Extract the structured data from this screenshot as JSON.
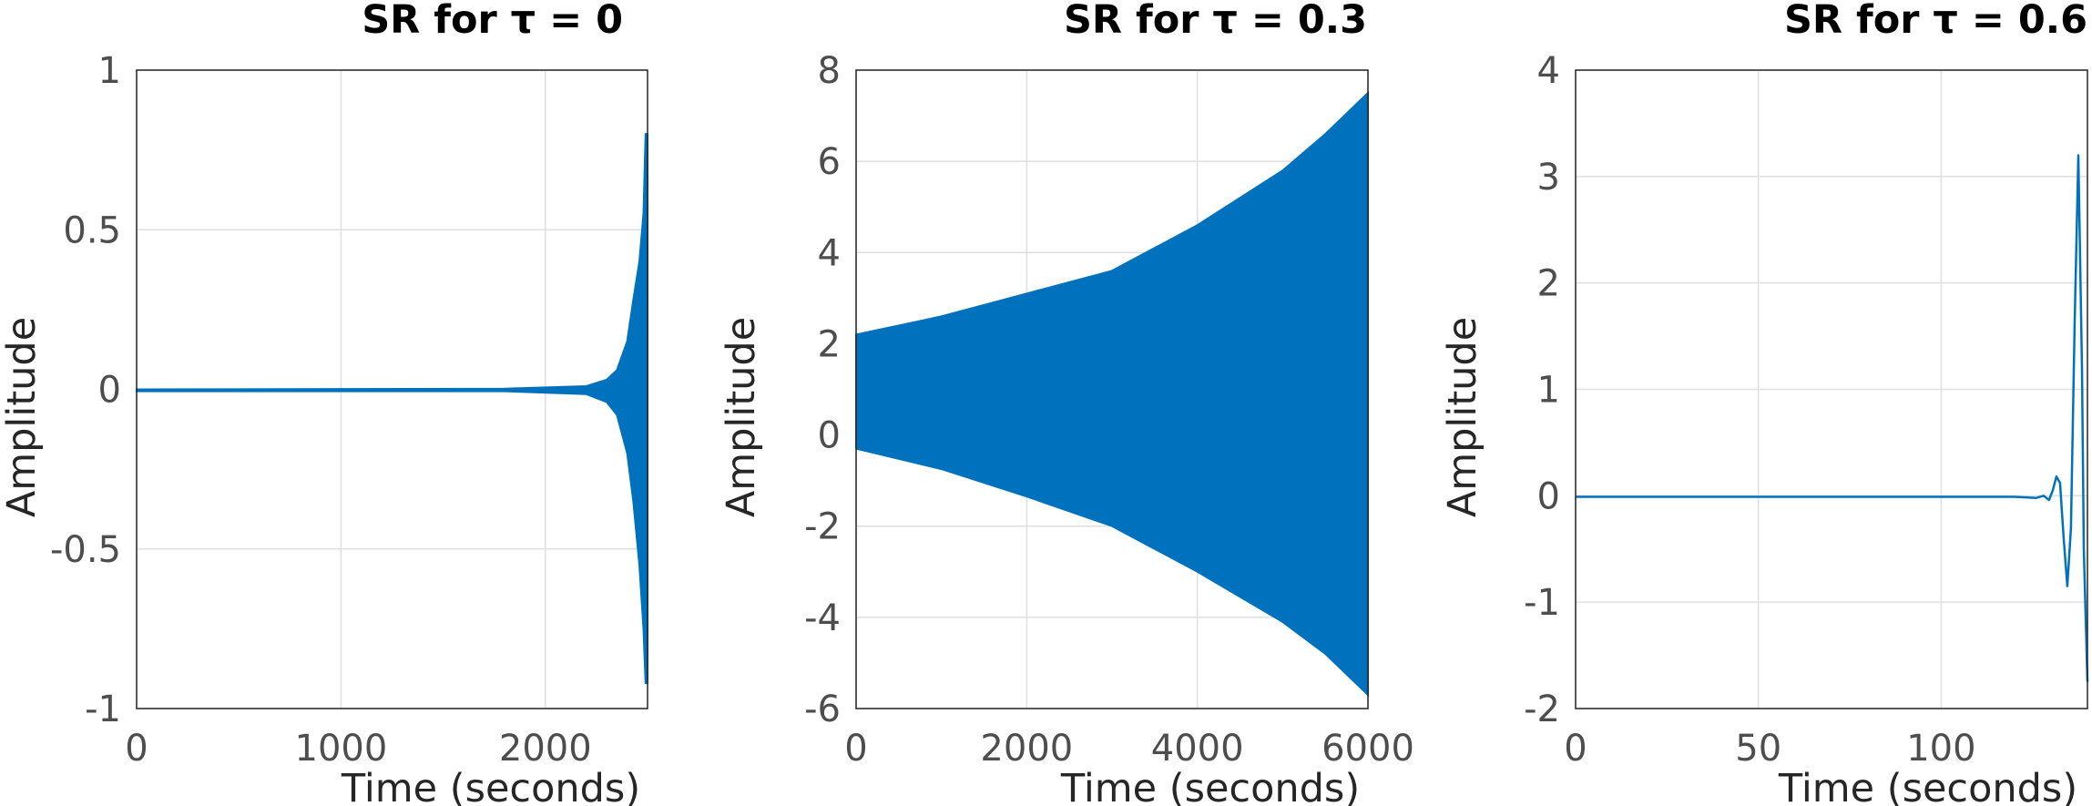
{
  "chart_data": [
    {
      "type": "line",
      "title": "SR for τ = 0",
      "xlabel": "Time (seconds)",
      "ylabel": "Amplitude",
      "xlim": [
        0,
        2500
      ],
      "ylim": [
        -1,
        1
      ],
      "xticks": [
        "0",
        "1000",
        "2000"
      ],
      "yticks": [
        "-1",
        "-0.5",
        "0",
        "0.5",
        "1"
      ],
      "grid": true,
      "color": "#0072bd",
      "envelope": {
        "x": [
          0,
          1800,
          2200,
          2300,
          2350,
          2400,
          2430,
          2460,
          2480,
          2490,
          2500
        ],
        "upper": [
          0.0,
          0.002,
          0.01,
          0.03,
          0.06,
          0.15,
          0.28,
          0.4,
          0.55,
          0.8,
          0.8
        ],
        "lower": [
          -0.006,
          -0.006,
          -0.015,
          -0.04,
          -0.08,
          -0.2,
          -0.35,
          -0.55,
          -0.75,
          -0.92,
          -0.92
        ]
      }
    },
    {
      "type": "line",
      "title": "SR for τ = 0.3",
      "xlabel": "Time (seconds)",
      "ylabel": "Amplitude",
      "xlim": [
        0,
        6000
      ],
      "ylim": [
        -6,
        8
      ],
      "xticks": [
        "0",
        "2000",
        "4000",
        "6000"
      ],
      "yticks": [
        "-6",
        "-4",
        "-2",
        "0",
        "2",
        "4",
        "6",
        "8"
      ],
      "grid": true,
      "color": "#0072bd",
      "envelope": {
        "x": [
          0,
          1000,
          2000,
          3000,
          4000,
          5000,
          5500,
          6000
        ],
        "upper": [
          2.2,
          2.6,
          3.1,
          3.6,
          4.6,
          5.8,
          6.6,
          7.5
        ],
        "lower": [
          -0.3,
          -0.75,
          -1.35,
          -2.0,
          -3.0,
          -4.1,
          -4.8,
          -5.7
        ]
      }
    },
    {
      "type": "line",
      "title": "SR for τ = 0.6",
      "xlabel": "Time (seconds)",
      "ylabel": "Amplitude",
      "xlim": [
        0,
        140
      ],
      "ylim": [
        -2,
        4
      ],
      "xticks": [
        "0",
        "50",
        "100"
      ],
      "yticks": [
        "-2",
        "-1",
        "0",
        "1",
        "2",
        "3",
        "4"
      ],
      "grid": true,
      "color": "#0072bd",
      "x": [
        0,
        120,
        126,
        128,
        129.5,
        130.5,
        131.5,
        132.5,
        133.5,
        134.5,
        135.5,
        136.5,
        137.5,
        138.5,
        139,
        140
      ],
      "y": [
        -0.01,
        -0.01,
        -0.02,
        0.0,
        -0.04,
        0.05,
        0.18,
        0.12,
        -0.4,
        -0.85,
        -0.3,
        1.6,
        3.2,
        1.2,
        -0.5,
        -1.75
      ]
    }
  ]
}
